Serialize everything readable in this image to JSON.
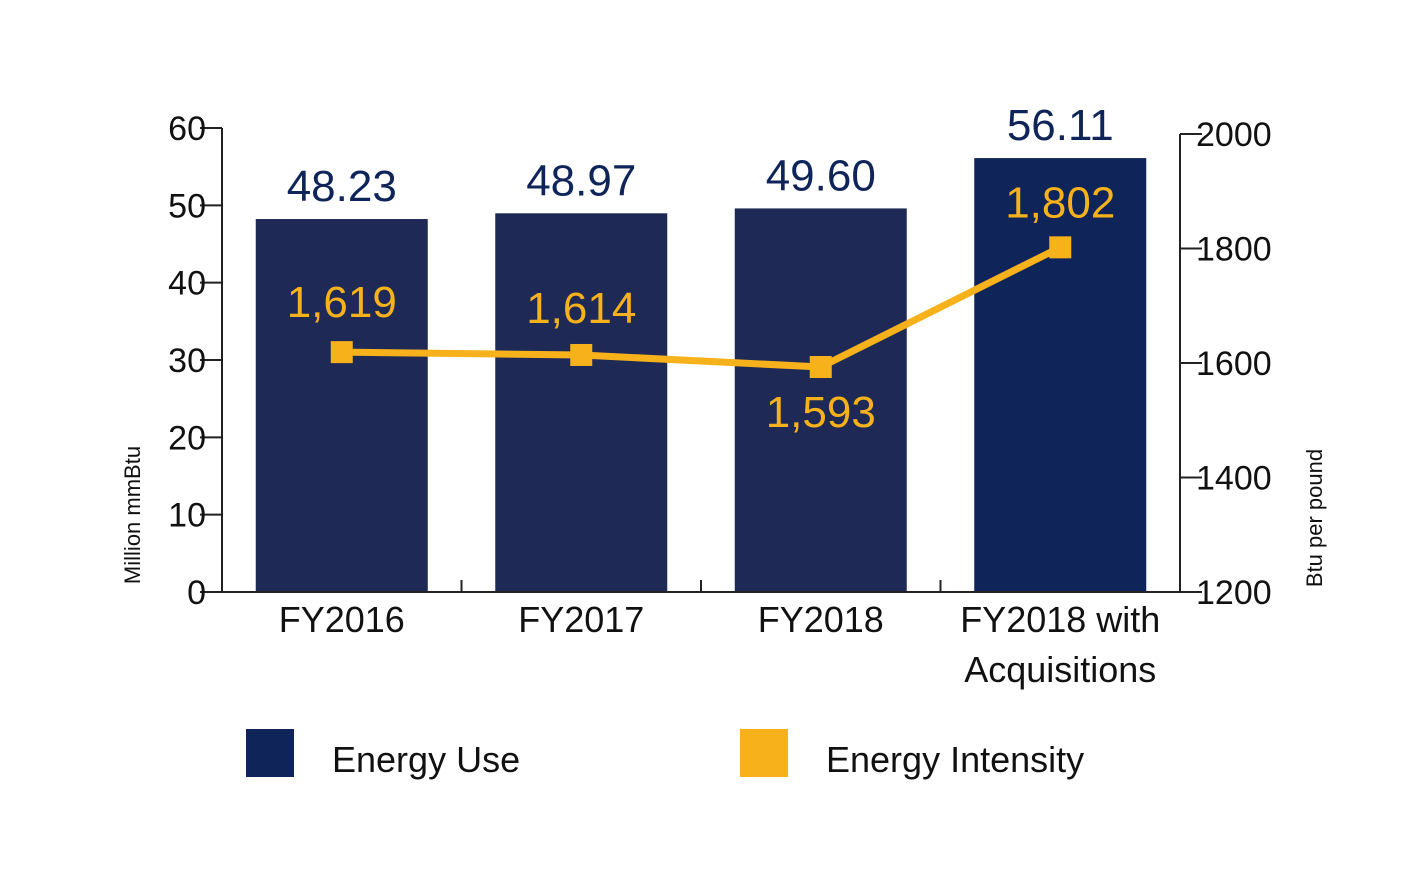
{
  "chart_data": {
    "type": "bar",
    "categories": [
      "FY2016",
      "FY2017",
      "FY2018",
      "FY2018 with\nAcquisitions"
    ],
    "series": [
      {
        "name": "Energy Use",
        "type": "bar",
        "axis": "left",
        "values": [
          48.23,
          48.97,
          49.6,
          56.11
        ],
        "labels": [
          "48.23",
          "48.97",
          "49.60",
          "56.11"
        ],
        "color": "#1e2a55",
        "highlight_color": "#0f2458"
      },
      {
        "name": "Energy Intensity",
        "type": "line",
        "axis": "right",
        "values": [
          1619,
          1614,
          1593,
          1802
        ],
        "labels": [
          "1,619",
          "1,614",
          "1,593",
          "1,802"
        ],
        "color": "#f7b21b"
      }
    ],
    "y_left": {
      "label": "Million mmBtu",
      "range": [
        0,
        60
      ],
      "ticks": [
        0,
        10,
        20,
        30,
        40,
        50,
        60
      ]
    },
    "y_right": {
      "label": "Btu per pound",
      "range": [
        1200,
        2000
      ],
      "ticks": [
        1200,
        1400,
        1600,
        1800,
        2000
      ]
    },
    "legend": {
      "position": "bottom",
      "items": [
        "Energy Use",
        "Energy Intensity"
      ]
    },
    "grid": false
  }
}
